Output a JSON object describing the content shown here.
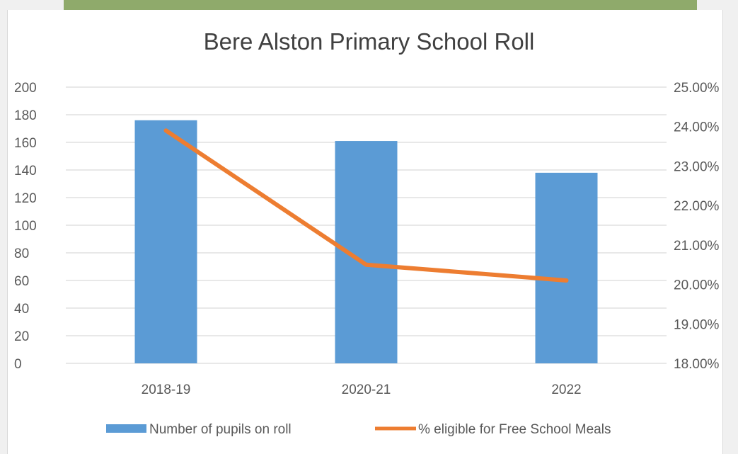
{
  "chart_data": {
    "type": "bar",
    "title": "Bere Alston Primary School Roll",
    "categories": [
      "2018-19",
      "2020-21",
      "2022"
    ],
    "series": [
      {
        "name": "Number of pupils on roll",
        "kind": "bar",
        "axis": "left",
        "values": [
          176,
          161,
          138
        ]
      },
      {
        "name": "% eligible for Free School Meals",
        "kind": "line",
        "axis": "right",
        "values": [
          23.9,
          20.5,
          20.1
        ]
      }
    ],
    "y_left": {
      "ylim": [
        0,
        200
      ],
      "ticks": [
        "0",
        "20",
        "40",
        "60",
        "80",
        "100",
        "120",
        "140",
        "160",
        "180",
        "200"
      ]
    },
    "y_right": {
      "ylim": [
        18,
        25
      ],
      "ticks": [
        "18.00%",
        "19.00%",
        "20.00%",
        "21.00%",
        "22.00%",
        "23.00%",
        "24.00%",
        "25.00%"
      ]
    },
    "grid": true,
    "legend_position": "bottom",
    "colors": {
      "bars": "#5b9bd5",
      "line": "#ed7d31",
      "grid": "#d9d9d9",
      "text": "#595959",
      "title": "#404040"
    }
  }
}
